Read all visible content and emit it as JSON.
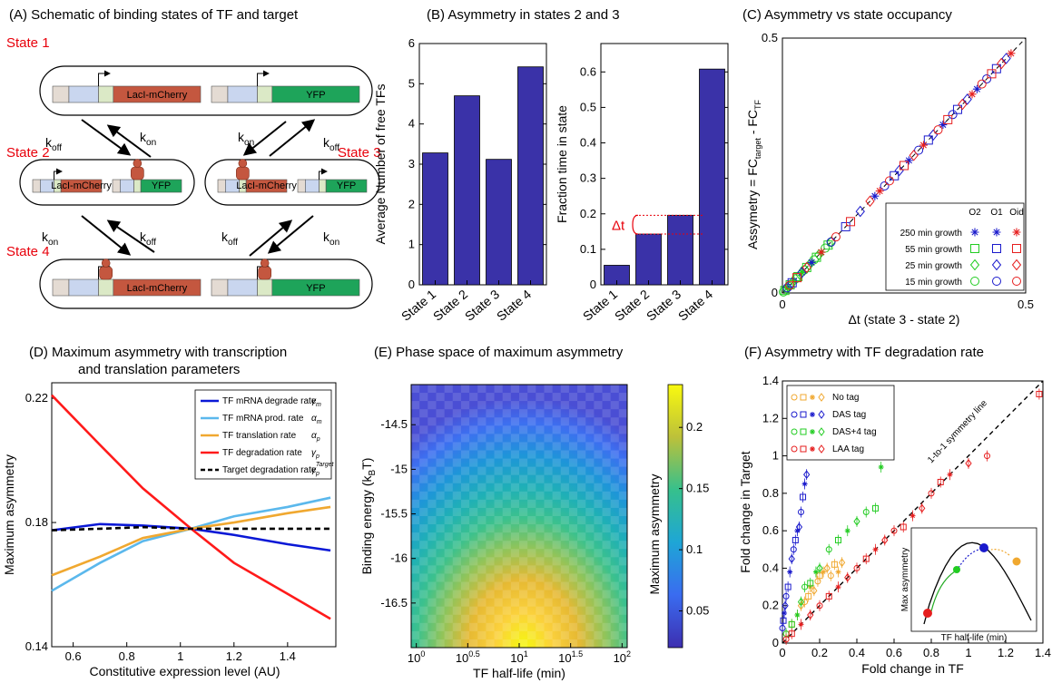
{
  "colors": {
    "bar": "#3a32a8",
    "lacI": "#c4573f",
    "yfp": "#1ea45a",
    "promoterBlue": "#c9d6ef",
    "promoterBeige": "#e4dbd3",
    "operator": "#dbe9c6",
    "tf": "#c4573f",
    "state_label": "#e8000b",
    "O2": "#22cc22",
    "O1": "#1a1acc",
    "Oid": "#e61e1e",
    "noTag": "#f0a830",
    "dasTag": "#1a1acc",
    "das4Tag": "#22cc22",
    "laaTag": "#e61e1e"
  },
  "panelA": {
    "title": "(A) Schematic of binding states of TF and target",
    "states": [
      "State 1",
      "State 2",
      "State 3",
      "State 4"
    ],
    "genes": {
      "lacI": "LacI-mCherry",
      "yfp": "YFP"
    },
    "rates": {
      "off": "k",
      "off_sub": "off",
      "on": "k",
      "on_sub": "on"
    }
  },
  "chart_data": [
    {
      "panel": "B-left",
      "type": "bar",
      "title": "(B) Asymmetry in states 2 and 3",
      "categories": [
        "State 1",
        "State 2",
        "State 3",
        "State 4"
      ],
      "values": [
        3.28,
        4.7,
        3.12,
        5.42
      ],
      "ylabel": "Average Number of free TFs",
      "ylim": [
        0,
        6
      ],
      "yticks": [
        0,
        1,
        2,
        3,
        4,
        5,
        6
      ]
    },
    {
      "panel": "B-right",
      "type": "bar",
      "categories": [
        "State 1",
        "State 2",
        "State 3",
        "State 4"
      ],
      "values": [
        0.055,
        0.143,
        0.196,
        0.608
      ],
      "ylabel": "Fraction time in state",
      "ylim": [
        0,
        0.68
      ],
      "yticks": [
        0,
        0.1,
        0.2,
        0.3,
        0.4,
        0.5,
        0.6
      ],
      "annotation": "Δt"
    },
    {
      "panel": "C",
      "type": "scatter",
      "title": "(C) Asymmetry vs state occupancy",
      "xlabel": "Δt (state 3 - state 2)",
      "ylabel": "Assymetry = FC",
      "ylabel_sub1": "target",
      "ylabel_mid": " - FC",
      "ylabel_sub2": "TF",
      "xlim": [
        0,
        0.5
      ],
      "ylim": [
        0,
        0.5
      ],
      "xticks": [
        0,
        0.5
      ],
      "yticks": [
        0,
        0.5
      ],
      "legend_header": [
        "O2",
        "O1",
        "Oid"
      ],
      "legend_rows": [
        "250 min growth",
        "55 min growth",
        "25 min growth",
        "15 min growth"
      ],
      "series": [
        {
          "name": "O2",
          "x": [
            0.002,
            0.005,
            0.008,
            0.01,
            0.013,
            0.016,
            0.02,
            0.024,
            0.028,
            0.032,
            0.036,
            0.04,
            0.045,
            0.05,
            0.055,
            0.06,
            0.065,
            0.07,
            0.075,
            0.08,
            0.088,
            0.094,
            0.1
          ],
          "y": [
            0.002,
            0.005,
            0.008,
            0.01,
            0.013,
            0.016,
            0.02,
            0.024,
            0.028,
            0.032,
            0.036,
            0.04,
            0.045,
            0.05,
            0.055,
            0.06,
            0.065,
            0.07,
            0.075,
            0.08,
            0.088,
            0.094,
            0.1
          ]
        },
        {
          "name": "O1",
          "x": [
            0.01,
            0.02,
            0.04,
            0.06,
            0.1,
            0.13,
            0.16,
            0.19,
            0.21,
            0.23,
            0.24,
            0.26,
            0.28,
            0.3,
            0.31,
            0.33,
            0.35,
            0.36,
            0.38,
            0.4,
            0.42,
            0.44,
            0.46
          ],
          "y": [
            0.01,
            0.02,
            0.04,
            0.06,
            0.1,
            0.13,
            0.16,
            0.19,
            0.21,
            0.23,
            0.24,
            0.26,
            0.28,
            0.3,
            0.31,
            0.33,
            0.35,
            0.36,
            0.38,
            0.4,
            0.42,
            0.44,
            0.46
          ]
        },
        {
          "name": "Oid",
          "x": [
            0.015,
            0.03,
            0.05,
            0.08,
            0.11,
            0.14,
            0.18,
            0.2,
            0.22,
            0.25,
            0.27,
            0.29,
            0.32,
            0.34,
            0.37,
            0.39,
            0.41,
            0.43,
            0.45,
            0.47
          ],
          "y": [
            0.015,
            0.03,
            0.05,
            0.08,
            0.11,
            0.14,
            0.18,
            0.2,
            0.22,
            0.25,
            0.27,
            0.29,
            0.32,
            0.34,
            0.37,
            0.39,
            0.41,
            0.43,
            0.45,
            0.47
          ]
        }
      ]
    },
    {
      "panel": "D",
      "type": "line",
      "title_line1": "(D) Maximum asymmetry with transcription",
      "title_line2": "and translation parameters",
      "xlabel": "Constitutive expression level (AU)",
      "ylabel": "Maximum asymmetry",
      "xlim": [
        0.52,
        1.58
      ],
      "ylim": [
        0.14,
        0.225
      ],
      "xticks": [
        0.6,
        0.8,
        1,
        1.2,
        1.4
      ],
      "yticks": [
        0.14,
        0.18,
        0.22
      ],
      "x": [
        0.52,
        0.7,
        0.86,
        1.04,
        1.2,
        1.4,
        1.56
      ],
      "series": [
        {
          "name": "TF mRNA degrade rate",
          "sym": "γ",
          "sub": "m",
          "color": "#0a18d6",
          "dash": false,
          "values": [
            0.1775,
            0.1795,
            0.179,
            0.178,
            0.176,
            0.173,
            0.171
          ]
        },
        {
          "name": "TF mRNA prod. rate",
          "sym": "α",
          "sub": "m",
          "color": "#5bb8ec",
          "dash": false,
          "values": [
            0.158,
            0.167,
            0.174,
            0.178,
            0.182,
            0.185,
            0.188
          ]
        },
        {
          "name": "TF translation rate",
          "sym": "α",
          "sub": "p",
          "color": "#f0a830",
          "dash": false,
          "values": [
            0.163,
            0.169,
            0.175,
            0.178,
            0.18,
            0.183,
            0.185
          ]
        },
        {
          "name": "TF degradation rate",
          "sym": "γ",
          "sub": "p",
          "color": "#ff1a1a",
          "dash": false,
          "values": [
            0.221,
            0.205,
            0.191,
            0.178,
            0.167,
            0.157,
            0.149
          ]
        },
        {
          "name": "Target degradation rate",
          "sym": "γ",
          "sub": "p",
          "sup": "Target",
          "color": "#000000",
          "dash": true,
          "values": [
            0.1775,
            0.178,
            0.1785,
            0.178,
            0.178,
            0.178,
            0.178
          ]
        }
      ]
    },
    {
      "panel": "E",
      "type": "heatmap",
      "title": "(E) Phase space of maximum asymmetry",
      "xlabel": "TF half-life (min)",
      "ylabel": "Binding energy (k",
      "ylabel_sub": "B",
      "ylabel_end": "T)",
      "colorbar_label": "Maximum asymmetry",
      "xscale": "log",
      "xlim_log10": [
        -0.05,
        2.05
      ],
      "xticks": [
        "10^0",
        "10^0.5",
        "10^1",
        "10^1.5",
        "10^2"
      ],
      "ylim": [
        -14.05,
        -17.0
      ],
      "yticks": [
        -14.5,
        -15,
        -15.5,
        -16,
        -16.5
      ],
      "crange": [
        0.02,
        0.235
      ],
      "cticks": [
        0.05,
        0.1,
        0.15,
        0.2
      ],
      "peak": {
        "log10_halflife": 1.12,
        "binding_energy": -16.95,
        "value": 0.235
      }
    },
    {
      "panel": "F",
      "type": "scatter",
      "title": "(F) Asymmetry with TF degradation rate",
      "xlabel": "Fold change in TF",
      "ylabel": "Fold change in Target",
      "xlim": [
        0,
        1.4
      ],
      "ylim": [
        0,
        1.4
      ],
      "xticks": [
        0,
        0.2,
        0.4,
        0.6,
        0.8,
        1,
        1.2,
        1.4
      ],
      "yticks": [
        0,
        0.2,
        0.4,
        0.6,
        0.8,
        1,
        1.2,
        1.4
      ],
      "symmetry_label": "1-to-1 symmetry line",
      "inset": {
        "ylabel": "Max asymmetry",
        "xlabel": "TF half-life (min)"
      },
      "series": [
        {
          "name": "No tag",
          "x": [
            0.02,
            0.05,
            0.08,
            0.1,
            0.12,
            0.14,
            0.15,
            0.17,
            0.19,
            0.2,
            0.22,
            0.24,
            0.26,
            0.28,
            0.3,
            0.32
          ],
          "y": [
            0.05,
            0.1,
            0.15,
            0.2,
            0.22,
            0.25,
            0.3,
            0.28,
            0.33,
            0.36,
            0.38,
            0.4,
            0.36,
            0.42,
            0.38,
            0.43
          ]
        },
        {
          "name": "DAS tag",
          "x": [
            0.0,
            0.005,
            0.01,
            0.015,
            0.02,
            0.03,
            0.04,
            0.05,
            0.06,
            0.07,
            0.08,
            0.09,
            0.1,
            0.11,
            0.12,
            0.13
          ],
          "y": [
            0.08,
            0.12,
            0.16,
            0.2,
            0.25,
            0.3,
            0.38,
            0.45,
            0.5,
            0.55,
            0.6,
            0.62,
            0.7,
            0.78,
            0.85,
            0.9
          ]
        },
        {
          "name": "DAS+4 tag",
          "x": [
            0.02,
            0.05,
            0.08,
            0.1,
            0.12,
            0.15,
            0.18,
            0.2,
            0.25,
            0.3,
            0.35,
            0.4,
            0.45,
            0.5,
            0.53
          ],
          "y": [
            0.05,
            0.1,
            0.15,
            0.22,
            0.3,
            0.32,
            0.38,
            0.4,
            0.5,
            0.55,
            0.6,
            0.65,
            0.7,
            0.72,
            0.94
          ]
        },
        {
          "name": "LAA tag",
          "x": [
            0.02,
            0.05,
            0.1,
            0.15,
            0.2,
            0.25,
            0.3,
            0.35,
            0.4,
            0.45,
            0.5,
            0.55,
            0.6,
            0.65,
            0.7,
            0.75,
            0.8,
            0.85,
            0.9,
            1.0,
            1.1,
            1.38
          ],
          "y": [
            0.02,
            0.05,
            0.1,
            0.15,
            0.2,
            0.25,
            0.3,
            0.35,
            0.4,
            0.45,
            0.5,
            0.55,
            0.6,
            0.62,
            0.68,
            0.72,
            0.8,
            0.86,
            0.9,
            0.96,
            1.0,
            1.33
          ]
        }
      ]
    }
  ]
}
